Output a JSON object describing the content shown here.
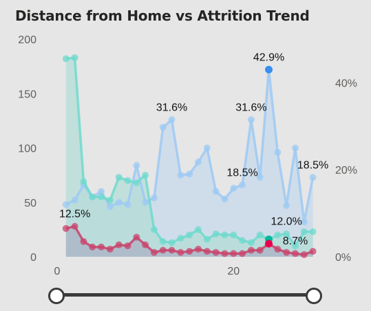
{
  "title": "Distance from Home vs Attrition Trend",
  "colors": {
    "total": "#9ec9f3",
    "total_fill": "#bcd5ec",
    "no_attrition": "#6fd9cc",
    "no_attrition_fill": "#b1ddd6",
    "attrition": "#c9436b",
    "attrition_fill": "#a9a8bf",
    "highlight_total": "#3a8ef0",
    "highlight_no": "#00b89c",
    "highlight_attr": "#e8004c",
    "background": "#e6e6e6"
  },
  "slider": {
    "min": 1,
    "max": 29
  },
  "chart_data": {
    "type": "line",
    "title": "Distance from Home vs Attrition Trend",
    "xlabel": "",
    "ylabel": "",
    "x": [
      1,
      2,
      3,
      4,
      5,
      6,
      7,
      8,
      9,
      10,
      11,
      12,
      13,
      14,
      15,
      16,
      17,
      18,
      19,
      20,
      21,
      22,
      23,
      24,
      25,
      26,
      27,
      28,
      29
    ],
    "xlim": [
      0,
      29.5
    ],
    "xticks": [
      0,
      20
    ],
    "ylim": [
      0,
      200
    ],
    "yticks": [
      0,
      50,
      100,
      150,
      200
    ],
    "y2lim": [
      0,
      0.5
    ],
    "y2ticks": [
      0,
      0.2,
      0.4
    ],
    "y2ticklabels": [
      "0%",
      "20%",
      "40%"
    ],
    "grid": false,
    "legend": "none",
    "series": [
      {
        "key": "total",
        "axis": "left",
        "values": [
          48,
          52,
          66,
          55,
          60,
          46,
          50,
          48,
          84,
          50,
          54,
          119,
          126,
          75,
          76,
          87,
          100,
          60,
          53,
          63,
          66,
          126,
          73,
          172,
          96,
          47,
          100,
          32,
          73
        ]
      },
      {
        "key": "no_attrition",
        "axis": "left",
        "values": [
          182,
          183,
          69,
          55,
          55,
          52,
          73,
          70,
          68,
          75,
          25,
          14,
          13,
          17,
          20,
          25,
          16,
          21,
          20,
          20,
          15,
          13,
          20,
          16,
          20,
          21,
          10,
          23,
          23
        ]
      },
      {
        "key": "attrition",
        "axis": "left",
        "values": [
          26,
          28,
          14,
          9,
          9,
          7,
          11,
          10,
          18,
          11,
          4,
          6,
          6,
          4,
          5,
          7,
          5,
          4,
          3,
          3,
          3,
          6,
          6,
          12,
          7,
          4,
          3,
          2,
          5
        ]
      }
    ],
    "highlight_x": 24,
    "annotations": [
      {
        "x": 2,
        "series": "attrition",
        "text": "12.5%"
      },
      {
        "x": 13,
        "series": "total",
        "text": "31.6%"
      },
      {
        "x": 22,
        "series": "total",
        "text": "31.6%"
      },
      {
        "x": 24,
        "series": "total",
        "text": "42.9%"
      },
      {
        "x": 21,
        "series": "total",
        "text": "18.5%"
      },
      {
        "x": 29,
        "series": "total",
        "text": "18.5%"
      },
      {
        "x": 26,
        "series": "no_attrition",
        "text": "12.0%"
      },
      {
        "x": 27,
        "series": "attrition",
        "text": "8.7%"
      }
    ]
  }
}
